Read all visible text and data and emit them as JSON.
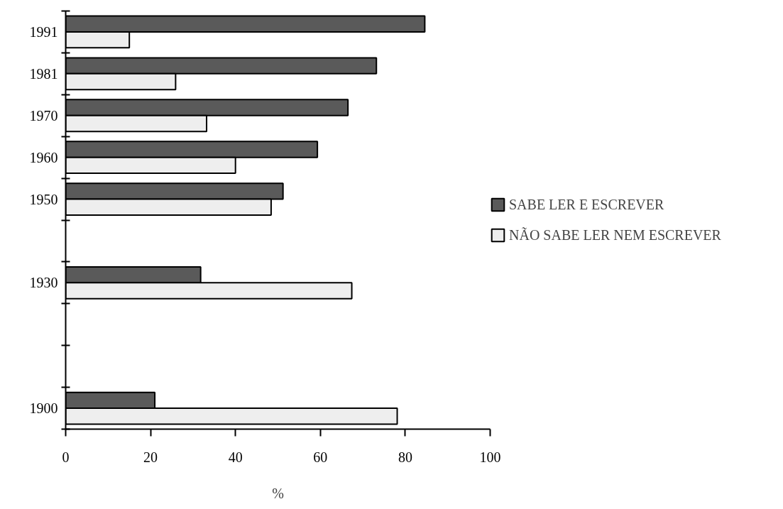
{
  "chart_data": {
    "type": "bar",
    "orientation": "horizontal",
    "xlabel": "%",
    "categories": [
      "1991",
      "1981",
      "1970",
      "1960",
      "1950",
      null,
      "1930",
      null,
      null,
      "1900"
    ],
    "series": [
      {
        "name": "SABE LER E ESCREVER",
        "color": "#5a5a5a",
        "values": [
          84.6,
          73.2,
          66.5,
          59.3,
          51.2,
          null,
          31.8,
          null,
          null,
          21.0
        ]
      },
      {
        "name": "NÃO SABE LER NEM ESCREVER",
        "color": "#eeeeee",
        "values": [
          15.0,
          25.9,
          33.2,
          40.0,
          48.4,
          null,
          67.4,
          null,
          null,
          78.1
        ]
      }
    ],
    "xlim": [
      0,
      100
    ],
    "xticks": [
      0,
      20,
      40,
      60,
      80,
      100
    ],
    "grid": false,
    "legend": "right"
  }
}
